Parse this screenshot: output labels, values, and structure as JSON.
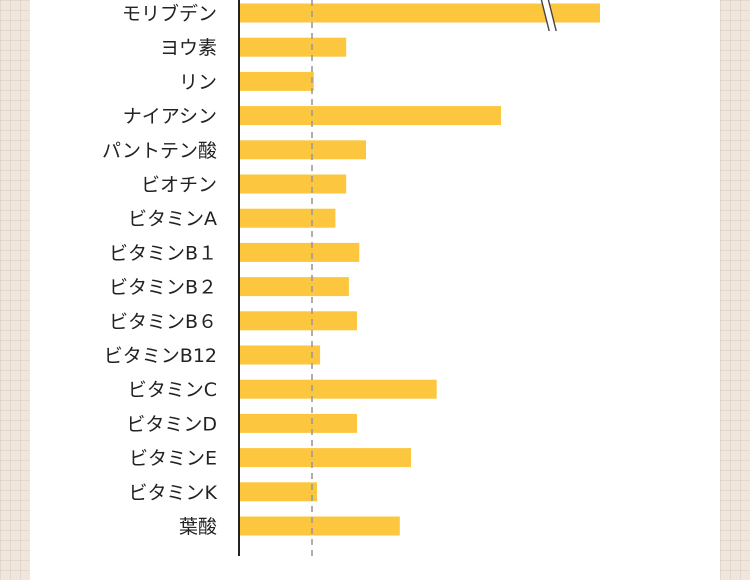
{
  "chart_data": {
    "type": "bar",
    "orientation": "horizontal",
    "title": "",
    "xlabel": "",
    "ylabel": "",
    "categories": [
      "モリブデン",
      "ヨウ素",
      "リン",
      "ナイアシン",
      "パントテン酸",
      "ビオチン",
      "ビタミンA",
      "ビタミンB１",
      "ビタミンB２",
      "ビタミンB６",
      "ビタミンB12",
      "ビタミンC",
      "ビタミンD",
      "ビタミンE",
      "ビタミンK",
      "葉酸"
    ],
    "values": [
      8.0,
      2.36,
      1.64,
      5.8,
      2.8,
      2.36,
      2.12,
      2.65,
      2.42,
      2.6,
      1.78,
      4.37,
      2.6,
      3.8,
      1.71,
      3.55
    ],
    "reference_line": 1.4,
    "axis_break_on": "モリブデン",
    "xlim": [
      0,
      8.0
    ],
    "grid": false,
    "legend": "none",
    "colors": {
      "bar": "#fcc73e",
      "axis": "#222222",
      "reference": "#9a9a9a"
    }
  }
}
